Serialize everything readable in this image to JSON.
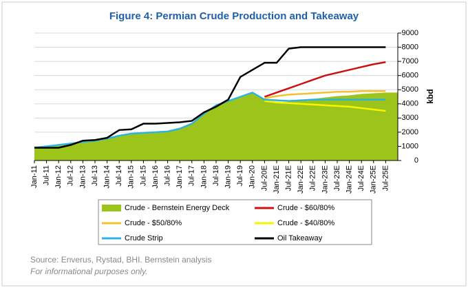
{
  "chart_data": {
    "type": "line",
    "title": "Figure 4: Permian Crude Production and Takeaway",
    "y_label": "kbd",
    "categories": [
      "Jan-11",
      "Jul-11",
      "Jan-12",
      "Jul-12",
      "Jan-13",
      "Jul-13",
      "Jan-14",
      "Jul-14",
      "Jan-15",
      "Jul-15",
      "Jan-16",
      "Jul-16",
      "Jan-17",
      "Jul-17",
      "Jan-18",
      "Jul-18",
      "Jan-19",
      "Jul-19",
      "Jan-20",
      "Jul-20E",
      "Jan-21E",
      "Jul-21E",
      "Jan-22E",
      "Jul-22E",
      "Jan-23E",
      "Jul-23E",
      "Jan-24E",
      "Jul-24E",
      "Jan-25E",
      "Jul-25E"
    ],
    "ylim": [
      0,
      9000
    ],
    "yticks": [
      0,
      1000,
      2000,
      3000,
      4000,
      5000,
      6000,
      7000,
      8000,
      9000
    ],
    "y_axis_side": "right",
    "grid": true,
    "series": [
      {
        "name": "Crude - Bernstein Energy Deck",
        "kind": "area",
        "color": "#9dc41a",
        "values": [
          900,
          1000,
          1100,
          1200,
          1300,
          1400,
          1550,
          1750,
          1900,
          1950,
          2000,
          2050,
          2250,
          2600,
          3300,
          3900,
          4200,
          4500,
          4800,
          4300,
          4100,
          4150,
          4250,
          4350,
          4450,
          4550,
          4600,
          4700,
          4750,
          4800
        ]
      },
      {
        "name": "Crude - $60/80%",
        "kind": "line",
        "color": "#cc1111",
        "values": [
          null,
          null,
          null,
          null,
          null,
          null,
          null,
          null,
          null,
          null,
          null,
          null,
          null,
          null,
          null,
          null,
          null,
          null,
          null,
          4500,
          4800,
          5100,
          5400,
          5700,
          6000,
          6200,
          6400,
          6600,
          6800,
          6950
        ]
      },
      {
        "name": "Crude - $50/80%",
        "kind": "line",
        "color": "#f2c230",
        "values": [
          null,
          null,
          null,
          null,
          null,
          null,
          null,
          null,
          null,
          null,
          null,
          null,
          null,
          null,
          null,
          null,
          null,
          null,
          null,
          4400,
          4550,
          4650,
          4700,
          4750,
          4800,
          4850,
          4850,
          4900,
          4900,
          4900
        ]
      },
      {
        "name": "Crude - $40/80%",
        "kind": "line",
        "color": "#f5f500",
        "values": [
          null,
          null,
          null,
          null,
          null,
          null,
          null,
          null,
          null,
          null,
          null,
          null,
          null,
          null,
          null,
          null,
          null,
          null,
          null,
          4200,
          4100,
          4050,
          4000,
          3950,
          3900,
          3850,
          3800,
          3700,
          3600,
          3500
        ]
      },
      {
        "name": "Crude Strip",
        "kind": "line",
        "color": "#2eb3e0",
        "values": [
          900,
          1000,
          1100,
          1200,
          1300,
          1400,
          1550,
          1750,
          1900,
          1950,
          2000,
          2050,
          2250,
          2600,
          3300,
          3900,
          4200,
          4500,
          4800,
          4300,
          4250,
          4200,
          4250,
          4300,
          4300,
          4300,
          4300,
          4300,
          4300,
          4300
        ]
      },
      {
        "name": "Oil Takeaway",
        "kind": "line",
        "color": "#000000",
        "values": [
          900,
          900,
          900,
          1100,
          1400,
          1450,
          1600,
          2150,
          2200,
          2600,
          2600,
          2650,
          2700,
          2800,
          3400,
          3800,
          4300,
          5900,
          6400,
          6900,
          6900,
          7900,
          8000,
          8000,
          8000,
          8000,
          8000,
          8000,
          8000,
          8000
        ]
      }
    ],
    "source": "Source: Enverus, Rystad, BHI. Bernstein analysis",
    "note": "For informational purposes only."
  }
}
